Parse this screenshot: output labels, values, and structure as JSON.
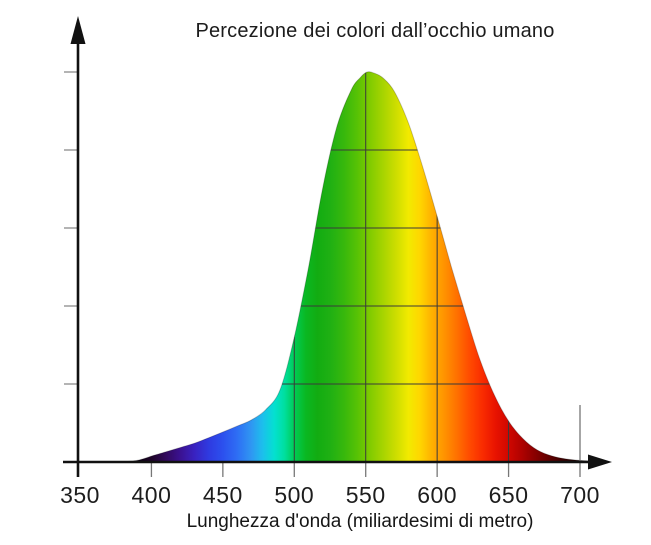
{
  "title": "Percezione dei colori dall’occhio umano",
  "x_axis": {
    "label": "Lunghezza d'onda (miliardesimi di metro)",
    "tick_labels": [
      "350",
      "400",
      "450",
      "500",
      "550",
      "600",
      "650",
      "700"
    ]
  },
  "chart_data": {
    "type": "area",
    "title": "Percezione dei colori dall’occhio umano",
    "xlabel": "Lunghezza d'onda (miliardesimi di metro)",
    "x_unit": "nm",
    "xlim": [
      350,
      700
    ],
    "ylim": [
      0,
      1
    ],
    "grid": "inside-curve",
    "legend": "none",
    "x": [
      383,
      390,
      395,
      400,
      410,
      420,
      430,
      440,
      450,
      460,
      470,
      480,
      490,
      500,
      510,
      520,
      530,
      540,
      546,
      551,
      556,
      562,
      570,
      580,
      590,
      600,
      610,
      620,
      630,
      640,
      650,
      660,
      670,
      680,
      690,
      700,
      712
    ],
    "y": [
      0.001,
      0.004,
      0.009,
      0.015,
      0.026,
      0.037,
      0.048,
      0.062,
      0.077,
      0.092,
      0.108,
      0.134,
      0.185,
      0.32,
      0.5,
      0.705,
      0.862,
      0.955,
      0.985,
      1.0,
      0.997,
      0.985,
      0.95,
      0.868,
      0.755,
      0.63,
      0.5,
      0.378,
      0.262,
      0.172,
      0.105,
      0.06,
      0.031,
      0.016,
      0.008,
      0.004,
      0.001
    ],
    "peak_nm": 551,
    "x_gridlines_nm": [
      500,
      550,
      600,
      650
    ],
    "y_gridlines": [
      0.2,
      0.4,
      0.6,
      0.8
    ],
    "y_ticks": [
      0.2,
      0.4,
      0.6,
      0.8,
      1.0
    ],
    "x_ticks_nm": [
      400,
      450,
      500,
      550,
      600,
      650,
      700
    ],
    "tall_tick_nm": 700,
    "axis_color": "#111111",
    "gridline_color": "#3a3a3a",
    "tick_color": "#777777",
    "spectrum_stops": [
      {
        "wl": 350,
        "color": "#000000"
      },
      {
        "wl": 390,
        "color": "#0a0110"
      },
      {
        "wl": 400,
        "color": "#1e0429"
      },
      {
        "wl": 410,
        "color": "#32095c"
      },
      {
        "wl": 420,
        "color": "#3a1190"
      },
      {
        "wl": 430,
        "color": "#3922c0"
      },
      {
        "wl": 440,
        "color": "#2f3ae0"
      },
      {
        "wl": 450,
        "color": "#2c50ee"
      },
      {
        "wl": 460,
        "color": "#2e6ef4"
      },
      {
        "wl": 470,
        "color": "#2f97f2"
      },
      {
        "wl": 478,
        "color": "#1cc0ec"
      },
      {
        "wl": 486,
        "color": "#04e0d0"
      },
      {
        "wl": 493,
        "color": "#00dfa0"
      },
      {
        "wl": 500,
        "color": "#00cc55"
      },
      {
        "wl": 508,
        "color": "#0ab822"
      },
      {
        "wl": 516,
        "color": "#12ac12"
      },
      {
        "wl": 525,
        "color": "#1fb013"
      },
      {
        "wl": 535,
        "color": "#38b80c"
      },
      {
        "wl": 544,
        "color": "#57c205"
      },
      {
        "wl": 552,
        "color": "#7cca00"
      },
      {
        "wl": 560,
        "color": "#9ed200"
      },
      {
        "wl": 570,
        "color": "#c8dc00"
      },
      {
        "wl": 580,
        "color": "#f2ea00"
      },
      {
        "wl": 588,
        "color": "#ffd600"
      },
      {
        "wl": 596,
        "color": "#ffb200"
      },
      {
        "wl": 605,
        "color": "#ff9300"
      },
      {
        "wl": 614,
        "color": "#ff7000"
      },
      {
        "wl": 623,
        "color": "#ff4a00"
      },
      {
        "wl": 632,
        "color": "#f92b00"
      },
      {
        "wl": 641,
        "color": "#e81300"
      },
      {
        "wl": 650,
        "color": "#d00700"
      },
      {
        "wl": 659,
        "color": "#b00200"
      },
      {
        "wl": 668,
        "color": "#8b0000"
      },
      {
        "wl": 678,
        "color": "#620000"
      },
      {
        "wl": 688,
        "color": "#3a0000"
      },
      {
        "wl": 698,
        "color": "#190000"
      },
      {
        "wl": 710,
        "color": "#030000"
      }
    ]
  }
}
